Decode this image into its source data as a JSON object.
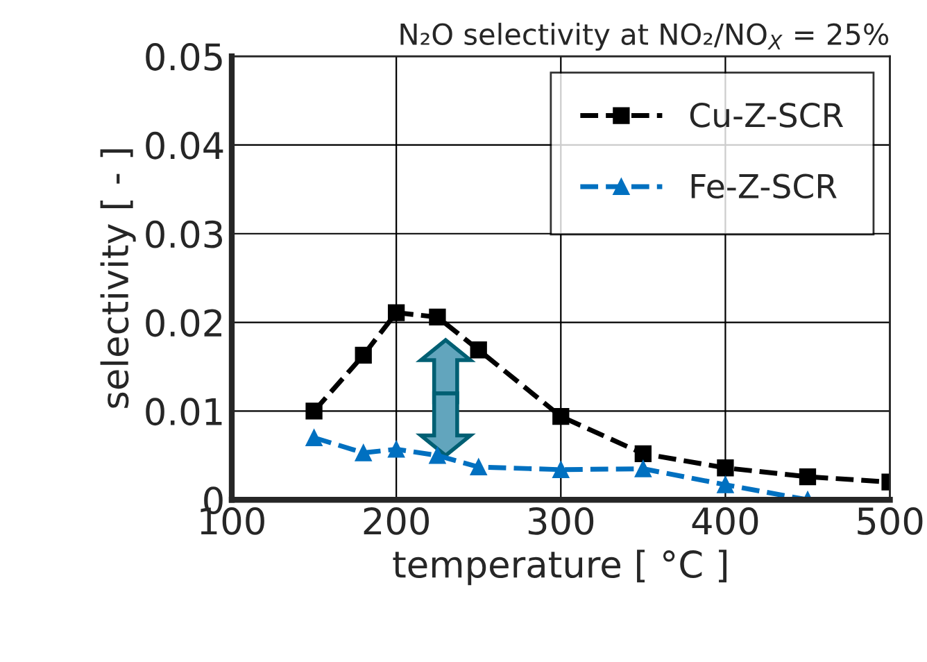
{
  "chart_data": {
    "type": "line",
    "title": "N₂O selectivity at NO₂/NO$_{X}$ = 25%",
    "xlabel": "temperature [ °C ]",
    "ylabel": "selectivity [ - ]",
    "series": [
      {
        "name": "Cu-Z-SCR",
        "color": "#000000",
        "marker": "square",
        "x": [
          150,
          180,
          200,
          225,
          250,
          300,
          350,
          400,
          450,
          500
        ],
        "values": [
          0.01,
          0.0163,
          0.0211,
          0.0206,
          0.0169,
          0.0094,
          0.0052,
          0.0036,
          0.0026,
          0.002
        ]
      },
      {
        "name": "Fe-Z-SCR",
        "color": "#0070c0",
        "marker": "triangle",
        "x": [
          150,
          180,
          200,
          225,
          250,
          300,
          350,
          400,
          450
        ],
        "values": [
          0.007,
          0.0053,
          0.0057,
          0.005,
          0.0037,
          0.0034,
          0.0035,
          0.0017,
          0.0
        ]
      }
    ],
    "xlim": [
      100,
      500
    ],
    "xticks": [
      100,
      200,
      300,
      400,
      500
    ],
    "ylim": [
      0,
      0.05
    ],
    "yticks": [
      0,
      0.01,
      0.02,
      0.03,
      0.04,
      0.05
    ],
    "grid": true,
    "legend": "top right",
    "line_style": "dashed"
  }
}
